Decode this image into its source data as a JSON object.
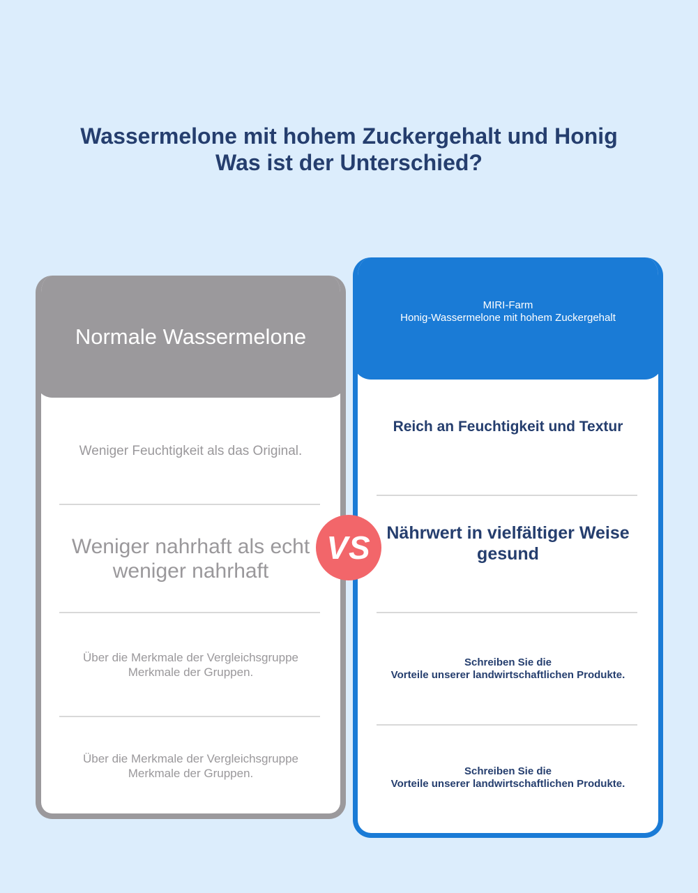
{
  "title": {
    "line1": "Wassermelone mit hohem Zuckergehalt und Honig",
    "line2": "Was ist der Unterschied?"
  },
  "left": {
    "header": "Normale Wassermelone",
    "rows": [
      {
        "line1": "Weniger Feuchtigkeit als das Original.",
        "line2": ""
      },
      {
        "line1": "Weniger nahrhaft als echt",
        "line2": "weniger nahrhaft"
      },
      {
        "line1": "Über die Merkmale der Vergleichsgruppe",
        "line2": "Merkmale der Gruppen."
      },
      {
        "line1": "Über die Merkmale der Vergleichsgruppe",
        "line2": "Merkmale der Gruppen."
      }
    ]
  },
  "right": {
    "header_line1": "MIRI-Farm",
    "header_line2": "Honig-Wassermelone mit hohem Zuckergehalt",
    "rows": [
      {
        "line1": "Reich an Feuchtigkeit und Textur",
        "line2": ""
      },
      {
        "line1": "Nährwert in vielfältiger Weise",
        "line2": "gesund"
      },
      {
        "line1": "Schreiben Sie die",
        "line2": "Vorteile unserer landwirtschaftlichen Produkte."
      },
      {
        "line1": "Schreiben Sie die",
        "line2": "Vorteile unserer landwirtschaftlichen Produkte."
      }
    ]
  },
  "vs_label": "VS",
  "colors": {
    "background": "#dcedfc",
    "left_accent": "#9b999c",
    "right_accent": "#1a7bd6",
    "vs": "#f2666a",
    "title": "#253e6e"
  }
}
